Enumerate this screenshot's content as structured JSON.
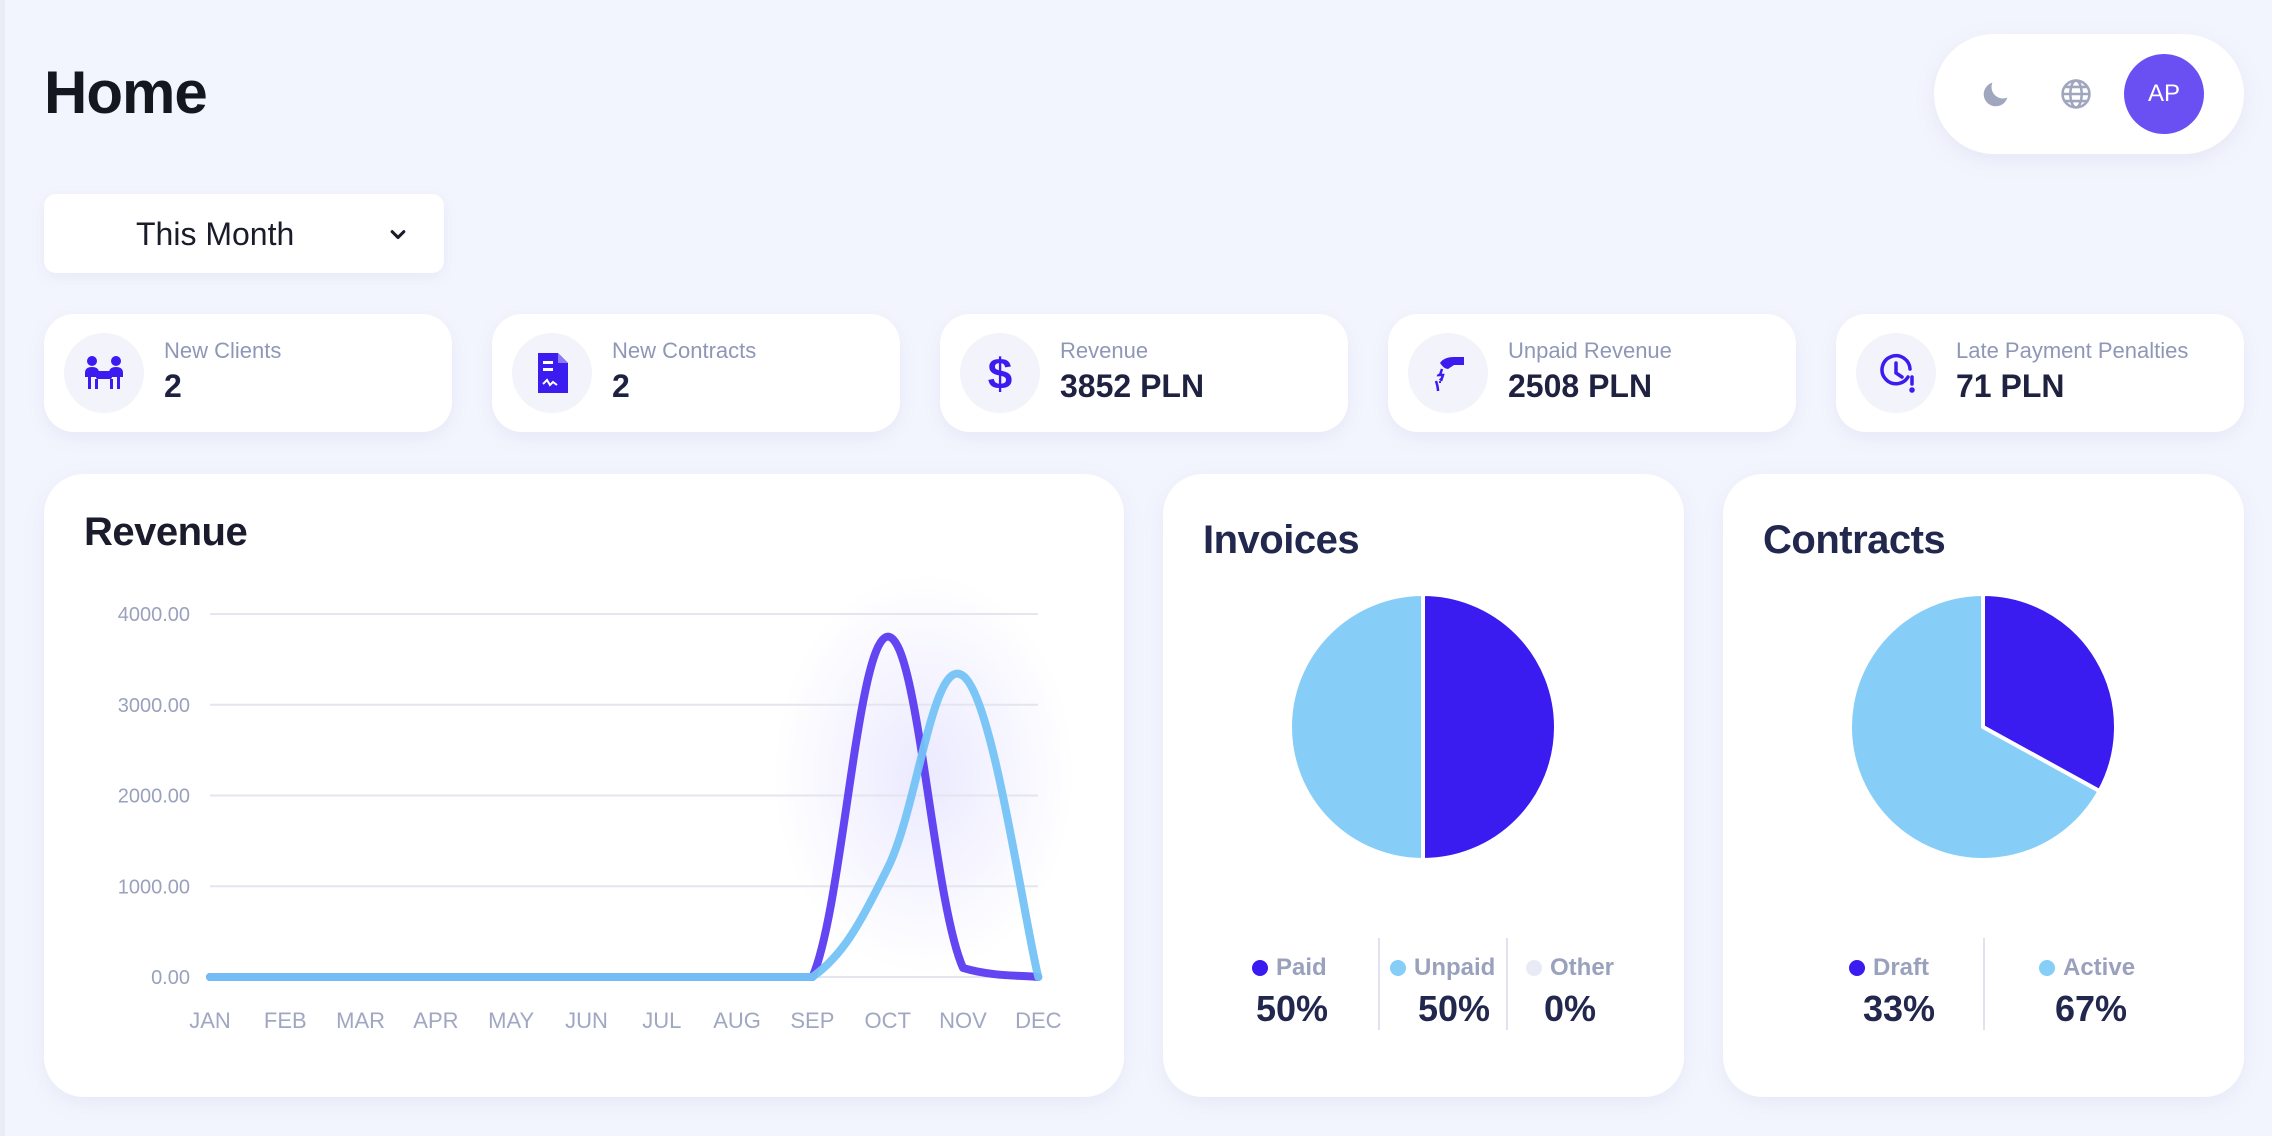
{
  "page": {
    "title": "Home"
  },
  "header": {
    "avatar_initials": "AP",
    "icons": [
      "moon-icon",
      "globe-icon"
    ]
  },
  "filter": {
    "period": "This Month"
  },
  "stats": [
    {
      "label": "New Clients",
      "value": "2",
      "icon": "clients-icon"
    },
    {
      "label": "New Contracts",
      "value": "2",
      "icon": "contract-document-icon"
    },
    {
      "label": "Revenue",
      "value": "3852 PLN",
      "icon": "dollar-icon"
    },
    {
      "label": "Unpaid Revenue",
      "value": "2508 PLN",
      "icon": "unpaid-hand-icon"
    },
    {
      "label": "Late Payment Penalties",
      "value": "71 PLN",
      "icon": "clock-alert-icon"
    }
  ],
  "colors": {
    "accent": "#3a1bf0",
    "light_blue": "#86cdf8",
    "avatar": "#6a4ff3",
    "background": "#f3f5fe"
  },
  "revenue_panel": {
    "title": "Revenue"
  },
  "invoices_panel": {
    "title": "Invoices",
    "legend": [
      {
        "label": "Paid",
        "value": "50%",
        "color": "#3a1bf0"
      },
      {
        "label": "Unpaid",
        "value": "50%",
        "color": "#86cdf8"
      },
      {
        "label": "Other",
        "value": "0%",
        "color": "#e8ebf5"
      }
    ]
  },
  "contracts_panel": {
    "title": "Contracts",
    "legend": [
      {
        "label": "Draft",
        "value": "33%",
        "color": "#3a1bf0"
      },
      {
        "label": "Active",
        "value": "67%",
        "color": "#86cdf8"
      }
    ]
  },
  "chart_data": [
    {
      "type": "line",
      "title": "Revenue",
      "categories": [
        "JAN",
        "FEB",
        "MAR",
        "APR",
        "MAY",
        "JUN",
        "JUL",
        "AUG",
        "SEP",
        "OCT",
        "NOV",
        "DEC"
      ],
      "y_tick_labels": [
        "0.00",
        "1000.00",
        "2000.00",
        "3000.00",
        "4000.00"
      ],
      "ylim": [
        0,
        4000
      ],
      "grid": true,
      "series": [
        {
          "color": "#5b3bf0",
          "values": [
            0,
            0,
            0,
            0,
            0,
            0,
            0,
            0,
            0,
            3750,
            100,
            0
          ]
        },
        {
          "color": "#74c3f6",
          "values": [
            0,
            0,
            0,
            0,
            0,
            0,
            0,
            0,
            0,
            1200,
            3320,
            0
          ]
        }
      ]
    },
    {
      "type": "pie",
      "title": "Invoices",
      "categories": [
        "Paid",
        "Unpaid",
        "Other"
      ],
      "values": [
        50,
        50,
        0
      ],
      "colors": [
        "#3a1bf0",
        "#86cdf8",
        "#e8ebf5"
      ]
    },
    {
      "type": "pie",
      "title": "Contracts",
      "categories": [
        "Draft",
        "Active"
      ],
      "values": [
        33,
        67
      ],
      "colors": [
        "#3a1bf0",
        "#86cdf8"
      ]
    }
  ]
}
